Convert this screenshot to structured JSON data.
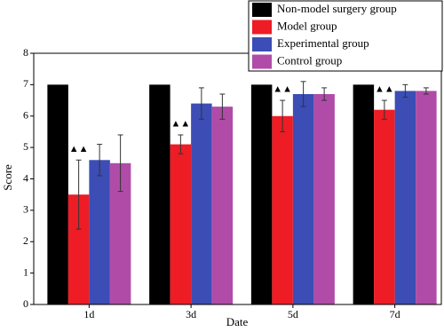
{
  "chart_data": {
    "type": "bar",
    "categories": [
      "1d",
      "3d",
      "5d",
      "7d"
    ],
    "series": [
      {
        "name": "Non-model surgery group",
        "color": "#000000",
        "values": [
          7,
          7,
          7,
          7
        ]
      },
      {
        "name": "Model group",
        "color": "#ee1c25",
        "values": [
          3.5,
          5.1,
          6.0,
          6.2
        ],
        "errors": [
          1.1,
          0.3,
          0.5,
          0.3
        ]
      },
      {
        "name": "Experimental group",
        "color": "#3c4db5",
        "values": [
          4.6,
          6.4,
          6.7,
          6.8
        ],
        "errors": [
          0.5,
          0.5,
          0.4,
          0.2
        ]
      },
      {
        "name": "Control group",
        "color": "#b04ca8",
        "values": [
          4.5,
          6.3,
          6.7,
          6.8
        ],
        "errors": [
          0.9,
          0.4,
          0.2,
          0.1
        ]
      }
    ],
    "annotations": [
      "▲▲",
      "▲▲",
      "▲▲",
      "▲▲"
    ],
    "xlabel": "Date",
    "ylabel": "Score",
    "ylim": [
      0,
      8
    ],
    "yticks": [
      0,
      1,
      2,
      3,
      4,
      5,
      6,
      7,
      8
    ],
    "legend": "top-right"
  }
}
